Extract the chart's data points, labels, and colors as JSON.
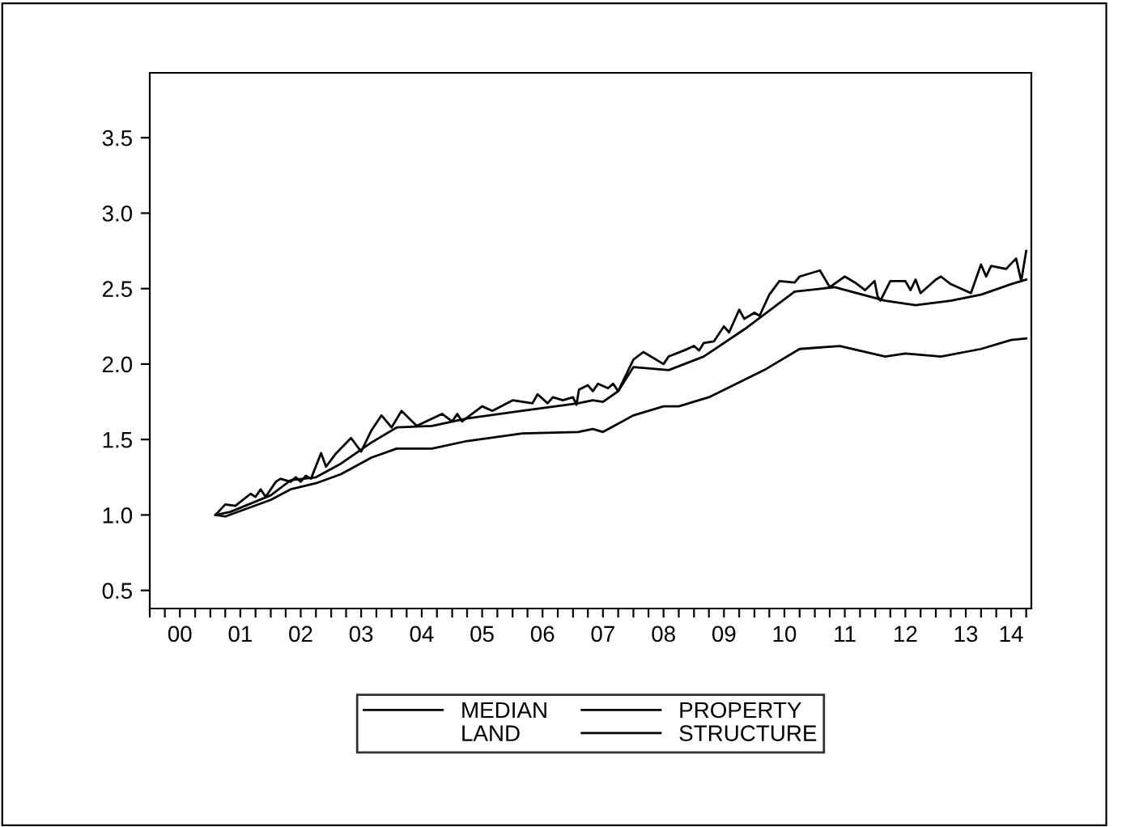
{
  "chart_data": {
    "type": "line",
    "xlim": [
      "2000-01",
      "2014-08"
    ],
    "ylim": [
      0.38,
      3.93
    ],
    "yticks": [
      0.5,
      {
        "value": 1,
        "label": "1.0"
      },
      1.5,
      {
        "value": 2,
        "label": "2.0"
      },
      2.5,
      {
        "value": 3,
        "label": "3.0"
      },
      3.5
    ],
    "xticks": [
      {
        "value": "2000-01",
        "label": null
      },
      {
        "value": "2000-04",
        "label": null
      },
      {
        "value": "2000-07",
        "label": "00"
      },
      {
        "value": "2000-10",
        "label": null
      },
      {
        "value": "2001-01",
        "label": null
      },
      {
        "value": "2001-04",
        "label": null
      },
      {
        "value": "2001-07",
        "label": "01"
      },
      {
        "value": "2001-10",
        "label": null
      },
      {
        "value": "2002-01",
        "label": null
      },
      {
        "value": "2002-04",
        "label": null
      },
      {
        "value": "2002-07",
        "label": "02"
      },
      {
        "value": "2002-10",
        "label": null
      },
      {
        "value": "2003-01",
        "label": null
      },
      {
        "value": "2003-04",
        "label": null
      },
      {
        "value": "2003-07",
        "label": "03"
      },
      {
        "value": "2003-10",
        "label": null
      },
      {
        "value": "2004-01",
        "label": null
      },
      {
        "value": "2004-04",
        "label": null
      },
      {
        "value": "2004-07",
        "label": "04"
      },
      {
        "value": "2004-10",
        "label": null
      },
      {
        "value": "2005-01",
        "label": null
      },
      {
        "value": "2005-04",
        "label": null
      },
      {
        "value": "2005-07",
        "label": "05"
      },
      {
        "value": "2005-10",
        "label": null
      },
      {
        "value": "2006-01",
        "label": null
      },
      {
        "value": "2006-04",
        "label": null
      },
      {
        "value": "2006-07",
        "label": "06"
      },
      {
        "value": "2006-10",
        "label": null
      },
      {
        "value": "2007-01",
        "label": null
      },
      {
        "value": "2007-04",
        "label": null
      },
      {
        "value": "2007-07",
        "label": "07"
      },
      {
        "value": "2007-10",
        "label": null
      },
      {
        "value": "2008-01",
        "label": null
      },
      {
        "value": "2008-04",
        "label": null
      },
      {
        "value": "2008-07",
        "label": "08"
      },
      {
        "value": "2008-10",
        "label": null
      },
      {
        "value": "2009-01",
        "label": null
      },
      {
        "value": "2009-04",
        "label": null
      },
      {
        "value": "2009-07",
        "label": "09"
      },
      {
        "value": "2009-10",
        "label": null
      },
      {
        "value": "2010-01",
        "label": null
      },
      {
        "value": "2010-04",
        "label": null
      },
      {
        "value": "2010-07",
        "label": "10"
      },
      {
        "value": "2010-10",
        "label": null
      },
      {
        "value": "2011-01",
        "label": null
      },
      {
        "value": "2011-04",
        "label": null
      },
      {
        "value": "2011-07",
        "label": "11"
      },
      {
        "value": "2011-10",
        "label": null
      },
      {
        "value": "2012-01",
        "label": null
      },
      {
        "value": "2012-04",
        "label": null
      },
      {
        "value": "2012-07",
        "label": "12"
      },
      {
        "value": "2012-10",
        "label": null
      },
      {
        "value": "2013-01",
        "label": null
      },
      {
        "value": "2013-04",
        "label": null
      },
      {
        "value": "2013-07",
        "label": "13"
      },
      {
        "value": "2013-10",
        "label": null
      },
      {
        "value": "2014-01",
        "label": null
      },
      {
        "value": "2014-04",
        "label": "14"
      },
      {
        "value": "2014-07",
        "label": null
      }
    ],
    "grid": false,
    "legend": "bottom",
    "line_style": "solid",
    "marker": "none",
    "series": [
      {
        "name": "MEDIAN",
        "color": "#000000",
        "x": [
          "2001-02",
          "2001-04",
          "2001-06",
          "2001-09",
          "2001-10",
          "2001-11",
          "2001-12",
          "2002-02",
          "2002-03",
          "2002-05",
          "2002-06",
          "2002-07",
          "2002-08",
          "2002-09",
          "2002-11",
          "2002-12",
          "2003-02",
          "2003-05",
          "2003-07",
          "2003-09",
          "2003-11",
          "2004-01",
          "2004-03",
          "2004-06",
          "2004-11",
          "2005-01",
          "2005-02",
          "2005-03",
          "2005-07",
          "2005-09",
          "2006-01",
          "2006-05",
          "2006-06",
          "2006-08",
          "2006-09",
          "2006-11",
          "2007-01",
          "2007-01-22",
          "2007-02-06",
          "2007-04",
          "2007-05",
          "2007-06",
          "2007-08",
          "2007-09",
          "2007-10",
          "2008-01",
          "2008-03",
          "2008-07",
          "2008-08",
          "2008-11",
          "2009-01",
          "2009-02",
          "2009-03",
          "2009-05",
          "2009-07",
          "2009-08",
          "2009-10",
          "2009-11",
          "2010-01",
          "2010-02",
          "2010-04",
          "2010-06",
          "2010-09",
          "2010-10",
          "2010-12",
          "2011-02",
          "2011-04",
          "2011-07",
          "2011-09",
          "2011-11",
          "2011-12-28",
          "2012-01-15",
          "2012-02",
          "2012-04",
          "2012-07",
          "2012-08",
          "2012-09",
          "2012-10",
          "2013-01",
          "2013-02",
          "2013-04",
          "2013-08",
          "2013-10",
          "2013-11",
          "2013-12",
          "2014-03",
          "2014-05",
          "2014-06",
          "2014-07"
        ],
        "values": [
          1.0,
          1.07,
          1.06,
          1.14,
          1.12,
          1.17,
          1.12,
          1.22,
          1.24,
          1.22,
          1.25,
          1.22,
          1.26,
          1.24,
          1.41,
          1.32,
          1.41,
          1.51,
          1.42,
          1.56,
          1.66,
          1.58,
          1.69,
          1.59,
          1.67,
          1.62,
          1.67,
          1.62,
          1.72,
          1.69,
          1.76,
          1.74,
          1.8,
          1.74,
          1.78,
          1.76,
          1.78,
          1.73,
          1.83,
          1.86,
          1.82,
          1.87,
          1.84,
          1.87,
          1.82,
          2.03,
          2.08,
          2.0,
          2.05,
          2.09,
          2.12,
          2.09,
          2.14,
          2.15,
          2.25,
          2.21,
          2.36,
          2.3,
          2.34,
          2.32,
          2.46,
          2.55,
          2.54,
          2.58,
          2.6,
          2.62,
          2.51,
          2.58,
          2.54,
          2.49,
          2.55,
          2.45,
          2.42,
          2.55,
          2.55,
          2.49,
          2.56,
          2.47,
          2.56,
          2.58,
          2.53,
          2.47,
          2.66,
          2.58,
          2.65,
          2.63,
          2.7,
          2.55,
          2.75
        ]
      },
      {
        "name": "LAND"
      },
      {
        "name": "PROPERTY",
        "color": "#000000",
        "x": [
          "2001-02",
          "2001-05",
          "2002-01",
          "2002-05",
          "2002-10",
          "2003-03",
          "2003-09",
          "2004-02",
          "2004-09",
          "2005-04",
          "2006-03",
          "2007-02",
          "2007-05",
          "2007-07",
          "2007-10",
          "2008-01",
          "2008-08",
          "2009-03",
          "2009-11",
          "2010-09",
          "2011-05",
          "2012-03",
          "2012-09",
          "2013-04",
          "2013-10",
          "2014-04",
          "2014-07"
        ],
        "values": [
          1.0,
          1.02,
          1.13,
          1.23,
          1.25,
          1.34,
          1.48,
          1.58,
          1.59,
          1.64,
          1.69,
          1.74,
          1.76,
          1.75,
          1.82,
          1.98,
          1.96,
          2.05,
          2.23,
          2.48,
          2.51,
          2.42,
          2.39,
          2.42,
          2.46,
          2.53,
          2.56
        ]
      },
      {
        "name": "STRUCTURE",
        "color": "#000000",
        "x": [
          "2001-02",
          "2001-04",
          "2002-01",
          "2002-05",
          "2002-10",
          "2003-03",
          "2003-09",
          "2004-02",
          "2004-09",
          "2005-04",
          "2006-03",
          "2007-02",
          "2007-05",
          "2007-07",
          "2008-01",
          "2008-07",
          "2008-10",
          "2009-04",
          "2010-03",
          "2010-10",
          "2011-06",
          "2012-03",
          "2012-07",
          "2013-02",
          "2013-10",
          "2014-04",
          "2014-07"
        ],
        "values": [
          1.0,
          0.99,
          1.1,
          1.17,
          1.21,
          1.27,
          1.38,
          1.44,
          1.44,
          1.49,
          1.54,
          1.55,
          1.57,
          1.55,
          1.66,
          1.72,
          1.72,
          1.78,
          1.96,
          2.1,
          2.12,
          2.05,
          2.07,
          2.05,
          2.1,
          2.16,
          2.17
        ]
      }
    ]
  }
}
